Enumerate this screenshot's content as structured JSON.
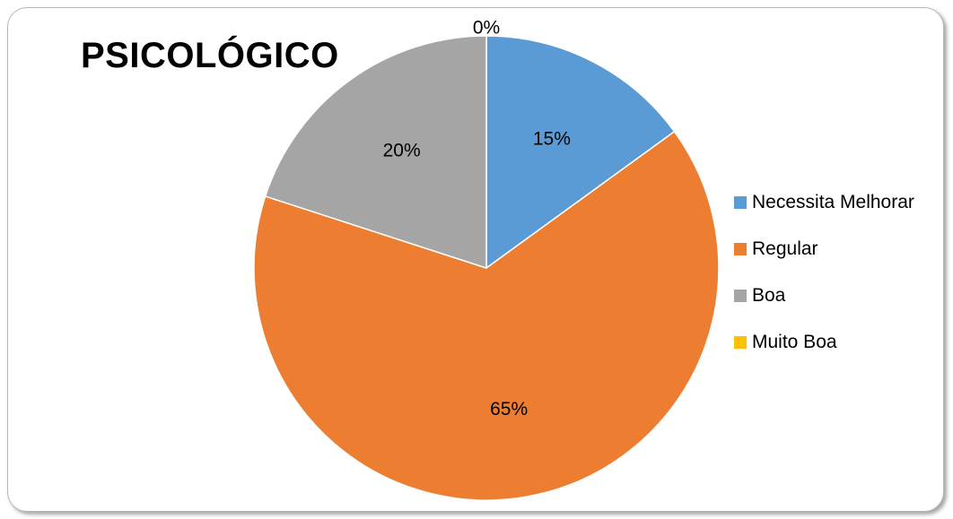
{
  "chart_data": {
    "type": "pie",
    "title": "PSICOLÓGICO",
    "categories": [
      "Necessita Melhorar",
      "Regular",
      "Boa",
      "Muito Boa"
    ],
    "values": [
      15,
      65,
      20,
      0
    ],
    "labels": [
      "15%",
      "65%",
      "20%",
      "0%"
    ],
    "colors": [
      "#5B9BD5",
      "#ED7D31",
      "#A5A5A5",
      "#FFC000"
    ],
    "legend_position": "right"
  }
}
